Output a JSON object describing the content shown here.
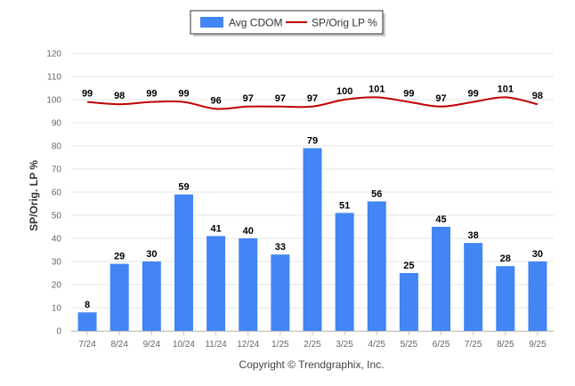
{
  "chart_data": {
    "type": "bar",
    "categories": [
      "7/24",
      "8/24",
      "9/24",
      "10/24",
      "11/24",
      "12/24",
      "1/25",
      "2/25",
      "3/25",
      "4/25",
      "5/25",
      "6/25",
      "7/25",
      "8/25",
      "9/25"
    ],
    "series": [
      {
        "name": "Avg CDOM",
        "type": "bar",
        "color": "#4285f4",
        "values": [
          8,
          29,
          30,
          59,
          41,
          40,
          33,
          79,
          51,
          56,
          25,
          45,
          38,
          28,
          30
        ]
      },
      {
        "name": "SP/Orig LP %",
        "type": "line",
        "color": "#c00000",
        "values": [
          99,
          98,
          99,
          99,
          96,
          97,
          97,
          97,
          100,
          101,
          99,
          97,
          99,
          101,
          98
        ]
      }
    ],
    "ylabel": "SP/Orig. LP %",
    "ylim": [
      0,
      120
    ],
    "yticks": [
      0,
      10,
      20,
      30,
      40,
      50,
      60,
      70,
      80,
      90,
      100,
      110,
      120
    ],
    "grid": true,
    "legend": "top-center",
    "copyright": "Copyright © Trendgraphix, Inc."
  }
}
